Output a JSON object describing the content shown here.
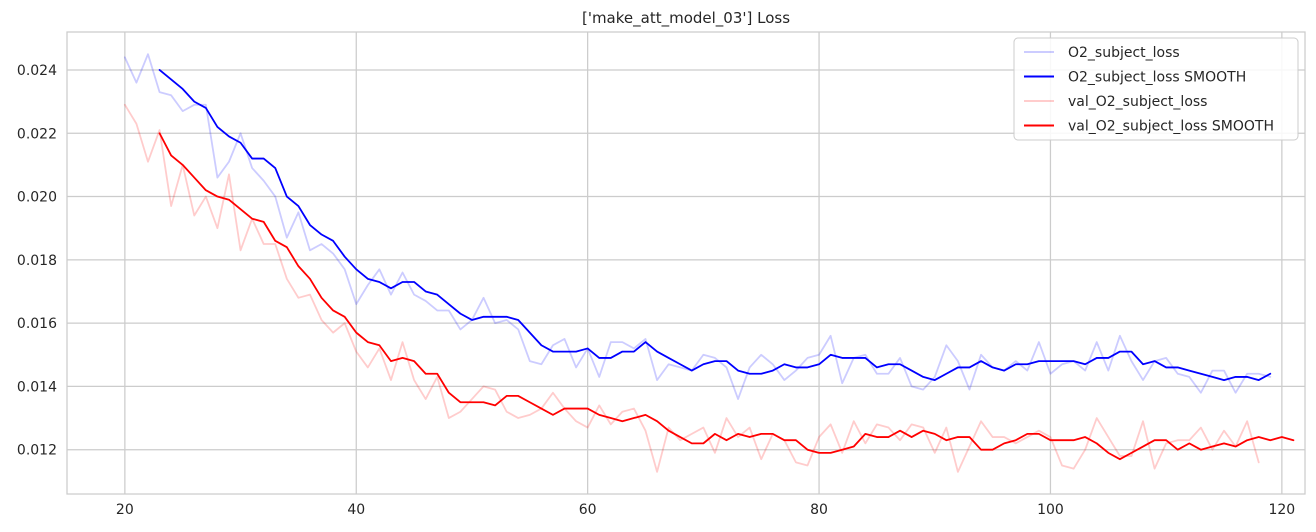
{
  "chart_data": {
    "type": "line",
    "title": "['make_att_model_03'] Loss",
    "xlabel": "",
    "ylabel": "",
    "xlim": [
      15,
      122
    ],
    "ylim": [
      0.0106,
      0.0252
    ],
    "xticks": [
      20,
      40,
      60,
      80,
      100,
      120
    ],
    "yticks": [
      0.012,
      0.014,
      0.016,
      0.018,
      0.02,
      0.022,
      0.024
    ],
    "xtick_labels": [
      "20",
      "40",
      "60",
      "80",
      "100",
      "120"
    ],
    "ytick_labels": [
      "0.012",
      "0.014",
      "0.016",
      "0.018",
      "0.020",
      "0.022",
      "0.024"
    ],
    "grid": true,
    "legend_position": "top-right",
    "series": [
      {
        "name": "O2_subject_loss",
        "color": "#0000ff",
        "alpha": 0.2,
        "x_start": 20,
        "values": [
          0.0244,
          0.0236,
          0.0245,
          0.0233,
          0.0232,
          0.0227,
          0.0229,
          0.0229,
          0.0206,
          0.0211,
          0.022,
          0.0209,
          0.0205,
          0.02,
          0.0187,
          0.0195,
          0.0183,
          0.0185,
          0.0182,
          0.0177,
          0.0166,
          0.0172,
          0.0177,
          0.0169,
          0.0176,
          0.0169,
          0.0167,
          0.0164,
          0.0164,
          0.0158,
          0.0161,
          0.0168,
          0.016,
          0.0161,
          0.0158,
          0.0148,
          0.0147,
          0.0153,
          0.0155,
          0.0146,
          0.0152,
          0.0143,
          0.0154,
          0.0154,
          0.0152,
          0.0155,
          0.0142,
          0.0147,
          0.0146,
          0.0145,
          0.015,
          0.0149,
          0.0146,
          0.0136,
          0.0146,
          0.015,
          0.0147,
          0.0142,
          0.0145,
          0.0149,
          0.015,
          0.0156,
          0.0141,
          0.0149,
          0.015,
          0.0144,
          0.0144,
          0.0149,
          0.014,
          0.0139,
          0.0143,
          0.0153,
          0.0148,
          0.0139,
          0.015,
          0.0146,
          0.0145,
          0.0148,
          0.0145,
          0.0154,
          0.0144,
          0.0147,
          0.0148,
          0.0145,
          0.0154,
          0.0145,
          0.0156,
          0.0148,
          0.0142,
          0.0148,
          0.0149,
          0.0144,
          0.0143,
          0.0138,
          0.0145,
          0.0145,
          0.0138,
          0.0144,
          0.0144,
          0.0143
        ]
      },
      {
        "name": "O2_subject_loss SMOOTH",
        "color": "#0000ff",
        "alpha": 1.0,
        "x_start": 23,
        "values": [
          0.024,
          0.0237,
          0.0234,
          0.023,
          0.0228,
          0.0222,
          0.0219,
          0.0217,
          0.0212,
          0.0212,
          0.0209,
          0.02,
          0.0197,
          0.0191,
          0.0188,
          0.0186,
          0.0181,
          0.0177,
          0.0174,
          0.0173,
          0.0171,
          0.0173,
          0.0173,
          0.017,
          0.0169,
          0.0166,
          0.0163,
          0.0161,
          0.0162,
          0.0162,
          0.0162,
          0.0161,
          0.0157,
          0.0153,
          0.0151,
          0.0151,
          0.0151,
          0.0152,
          0.0149,
          0.0149,
          0.0151,
          0.0151,
          0.0154,
          0.0151,
          0.0149,
          0.0147,
          0.0145,
          0.0147,
          0.0148,
          0.0148,
          0.0145,
          0.0144,
          0.0144,
          0.0145,
          0.0147,
          0.0146,
          0.0146,
          0.0147,
          0.015,
          0.0149,
          0.0149,
          0.0149,
          0.0146,
          0.0147,
          0.0147,
          0.0145,
          0.0143,
          0.0142,
          0.0144,
          0.0146,
          0.0146,
          0.0148,
          0.0146,
          0.0145,
          0.0147,
          0.0147,
          0.0148,
          0.0148,
          0.0148,
          0.0148,
          0.0147,
          0.0149,
          0.0149,
          0.0151,
          0.0151,
          0.0147,
          0.0148,
          0.0146,
          0.0146,
          0.0145,
          0.0144,
          0.0143,
          0.0142,
          0.0143,
          0.0143,
          0.0142,
          0.0144
        ]
      },
      {
        "name": "val_O2_subject_loss",
        "color": "#ff0000",
        "alpha": 0.2,
        "x_start": 20,
        "values": [
          0.0229,
          0.0223,
          0.0211,
          0.0221,
          0.0197,
          0.021,
          0.0194,
          0.02,
          0.019,
          0.0207,
          0.0183,
          0.0193,
          0.0185,
          0.0185,
          0.0174,
          0.0168,
          0.0169,
          0.0161,
          0.0157,
          0.016,
          0.0151,
          0.0146,
          0.0152,
          0.0142,
          0.0154,
          0.0142,
          0.0136,
          0.0143,
          0.013,
          0.0132,
          0.0136,
          0.014,
          0.0139,
          0.0132,
          0.013,
          0.0131,
          0.0133,
          0.0138,
          0.0133,
          0.0129,
          0.0127,
          0.0134,
          0.0128,
          0.0132,
          0.0133,
          0.0126,
          0.0113,
          0.0127,
          0.0123,
          0.0125,
          0.0127,
          0.0119,
          0.013,
          0.0124,
          0.0127,
          0.0117,
          0.0125,
          0.0123,
          0.0116,
          0.0115,
          0.0124,
          0.0128,
          0.0119,
          0.0129,
          0.0122,
          0.0128,
          0.0127,
          0.0123,
          0.0128,
          0.0127,
          0.0119,
          0.0127,
          0.0113,
          0.0121,
          0.0129,
          0.0124,
          0.0124,
          0.0122,
          0.0124,
          0.0126,
          0.0124,
          0.0115,
          0.0114,
          0.012,
          0.013,
          0.0124,
          0.0118,
          0.0118,
          0.0129,
          0.0114,
          0.0122,
          0.0123,
          0.0123,
          0.0127,
          0.012,
          0.0126,
          0.0121,
          0.0129,
          0.0116
        ]
      },
      {
        "name": "val_O2_subject_loss SMOOTH",
        "color": "#ff0000",
        "alpha": 1.0,
        "x_start": 23,
        "values": [
          0.022,
          0.0213,
          0.021,
          0.0206,
          0.0202,
          0.02,
          0.0199,
          0.0196,
          0.0193,
          0.0192,
          0.0186,
          0.0184,
          0.0178,
          0.0174,
          0.0168,
          0.0164,
          0.0162,
          0.0157,
          0.0154,
          0.0153,
          0.0148,
          0.0149,
          0.0148,
          0.0144,
          0.0144,
          0.0138,
          0.0135,
          0.0135,
          0.0135,
          0.0134,
          0.0137,
          0.0137,
          0.0135,
          0.0133,
          0.0131,
          0.0133,
          0.0133,
          0.0133,
          0.0131,
          0.013,
          0.0129,
          0.013,
          0.0131,
          0.0129,
          0.0126,
          0.0124,
          0.0122,
          0.0122,
          0.0125,
          0.0123,
          0.0125,
          0.0124,
          0.0125,
          0.0125,
          0.0123,
          0.0123,
          0.012,
          0.0119,
          0.0119,
          0.012,
          0.0121,
          0.0125,
          0.0124,
          0.0124,
          0.0126,
          0.0124,
          0.0126,
          0.0125,
          0.0123,
          0.0124,
          0.0124,
          0.012,
          0.012,
          0.0122,
          0.0123,
          0.0125,
          0.0125,
          0.0123,
          0.0123,
          0.0123,
          0.0124,
          0.0122,
          0.0119,
          0.0117,
          0.0119,
          0.0121,
          0.0123,
          0.0123,
          0.012,
          0.0122,
          0.012,
          0.0121,
          0.0122,
          0.0121,
          0.0123,
          0.0124,
          0.0123,
          0.0124,
          0.0123
        ]
      }
    ]
  }
}
